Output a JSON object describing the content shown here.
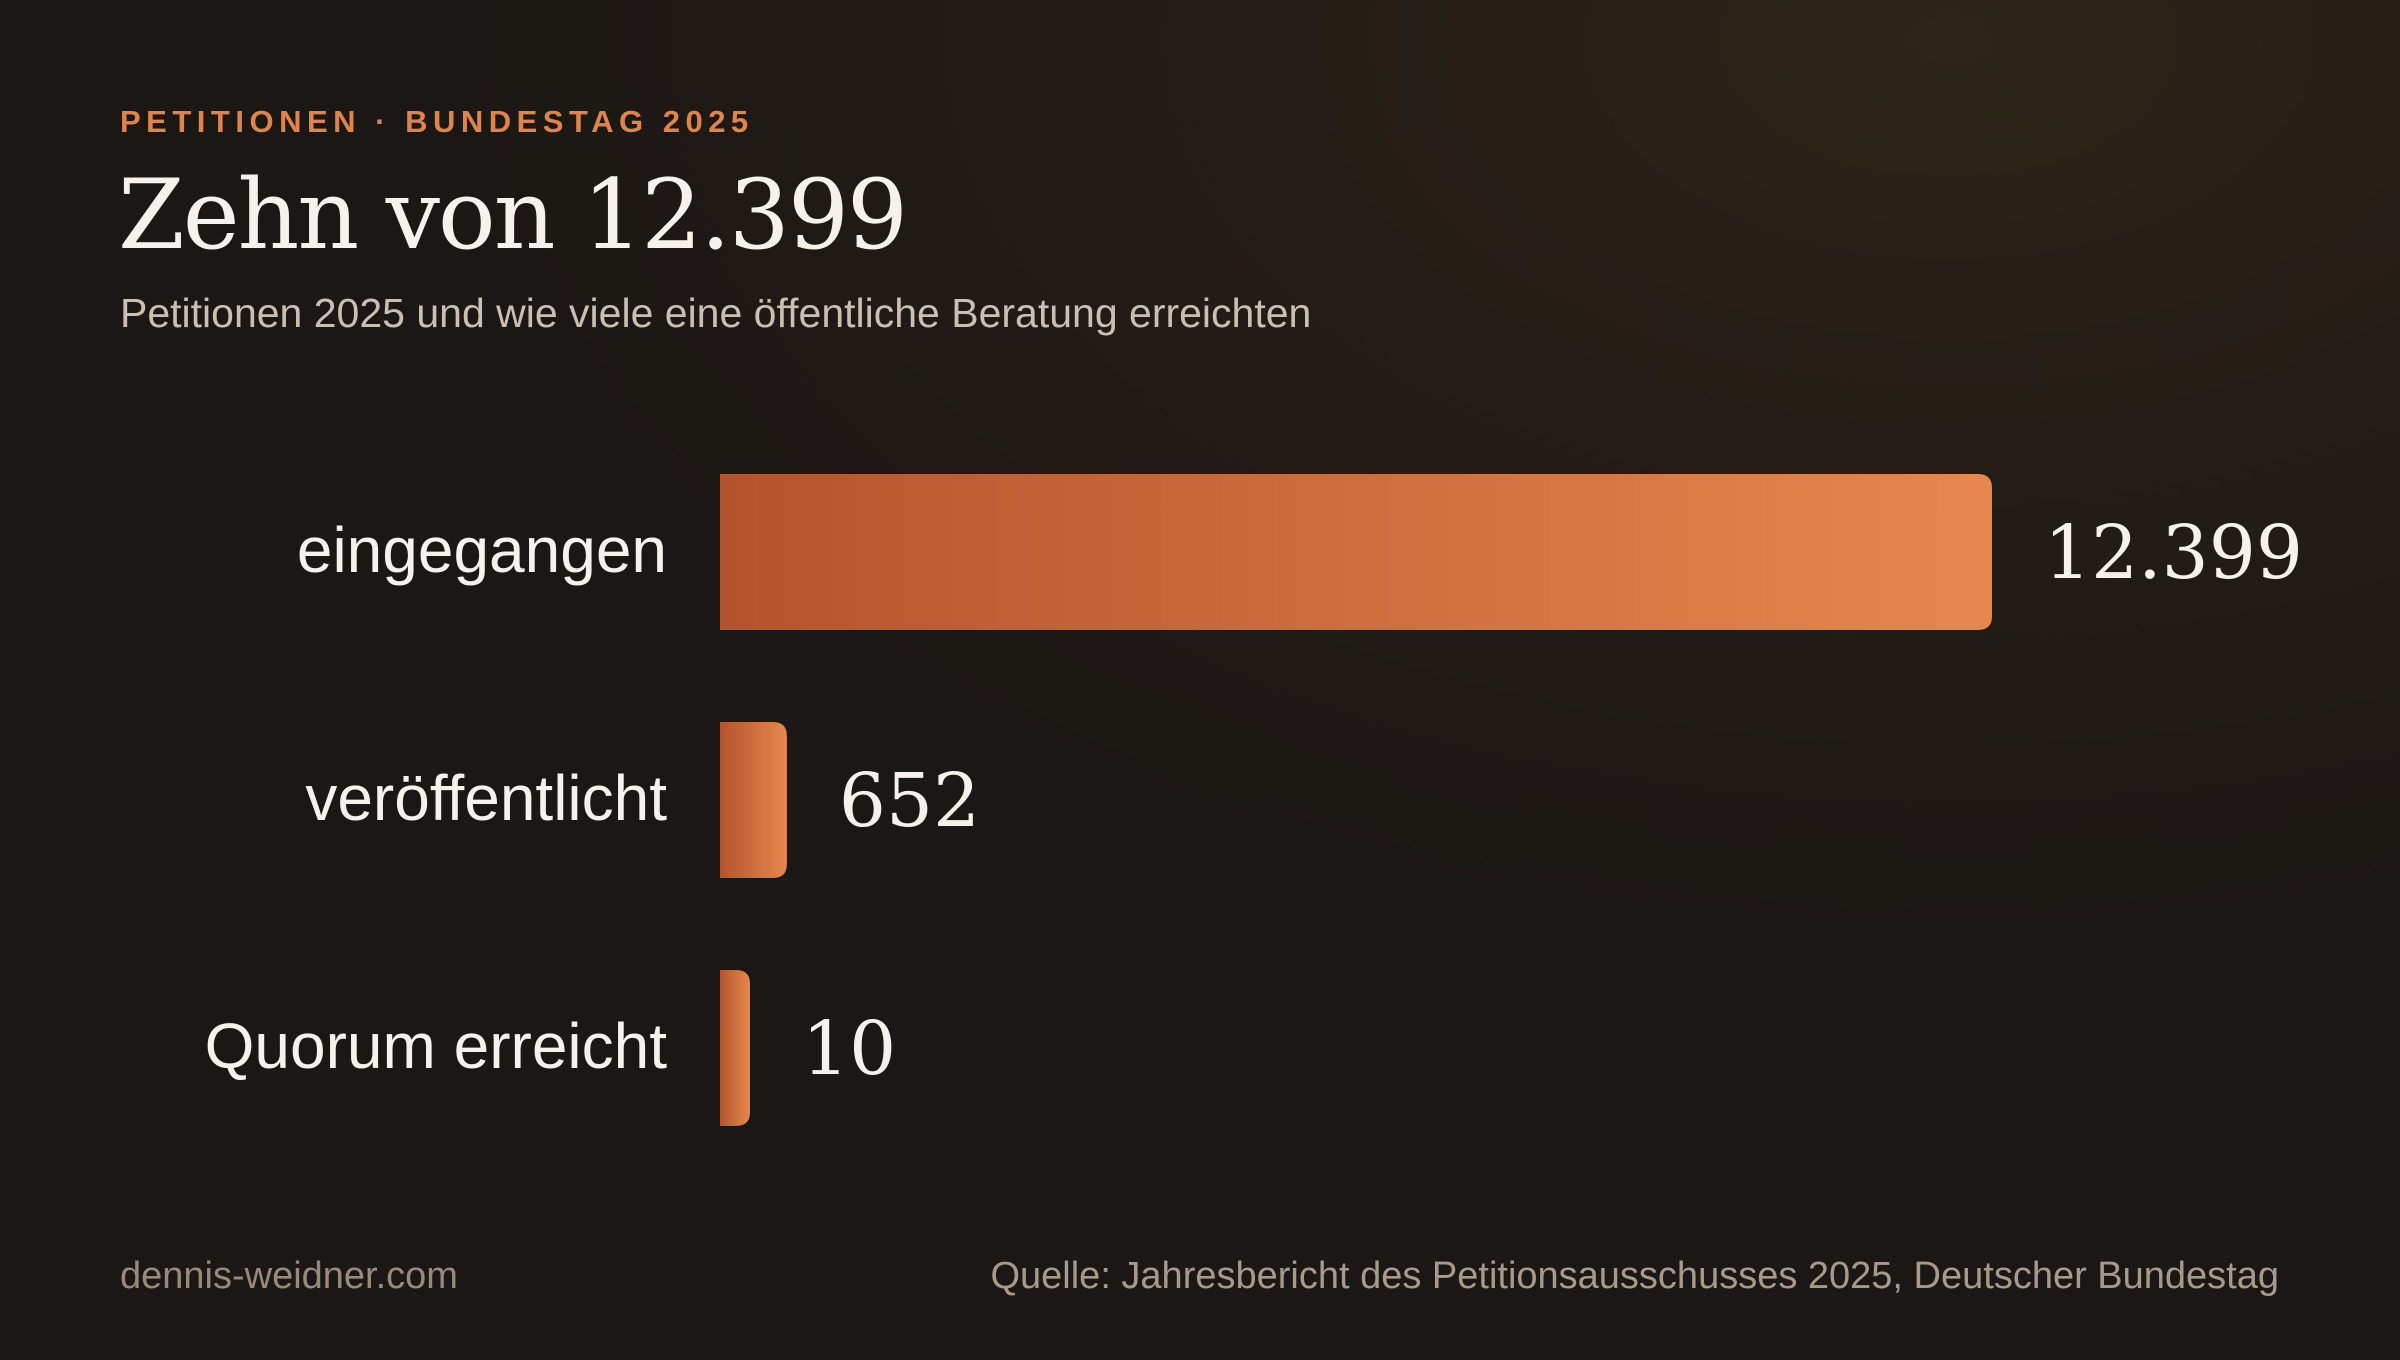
{
  "header": {
    "kicker": "PETITIONEN · BUNDESTAG 2025",
    "title": "Zehn von 12.399",
    "subtitle": "Petitionen 2025 und wie viele eine öffentliche Beratung erreichten"
  },
  "footer": {
    "site": "dennis-weidner.com",
    "source": "Quelle: Jahresbericht des Petitionsausschusses 2025, Deutscher Bundestag"
  },
  "colors": {
    "accent": "#e0844a",
    "bar_dark": "#b4542e",
    "bar_light": "#e6884e",
    "text_light": "#f6f1ea"
  },
  "chart_data": {
    "type": "bar",
    "orientation": "horizontal",
    "categories": [
      "eingegangen",
      "veröffentlicht",
      "Quorum erreicht"
    ],
    "values": [
      12399,
      652,
      10
    ],
    "value_labels": [
      "12.399",
      "652",
      "10"
    ],
    "xlim": [
      0,
      12399
    ],
    "grid": false,
    "legend": "none"
  }
}
